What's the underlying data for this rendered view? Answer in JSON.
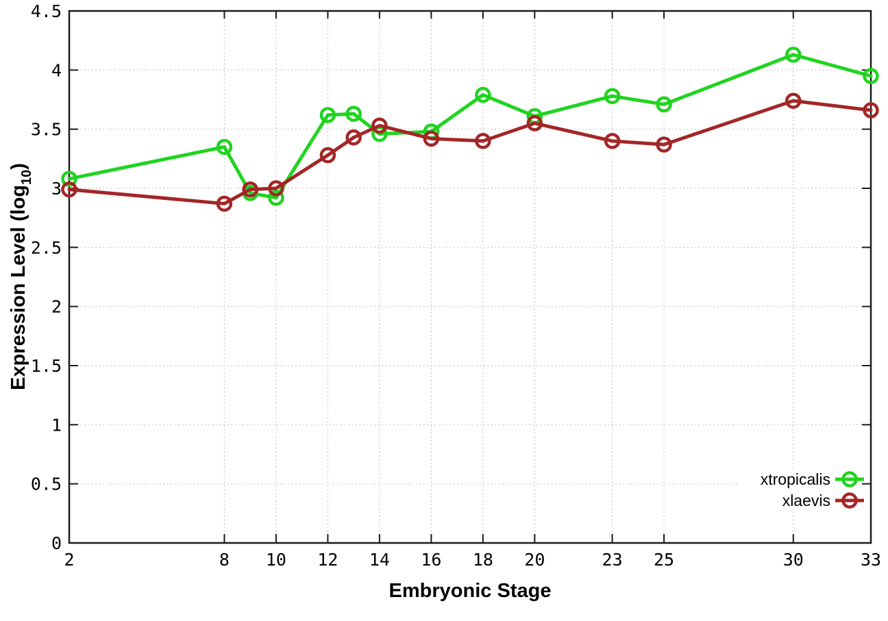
{
  "chart_data": {
    "type": "line",
    "title": "",
    "xlabel": "Embryonic Stage",
    "ylabel": {
      "prefix": "Expression Level (log",
      "sub": "10",
      "suffix": ")"
    },
    "xlim": [
      2,
      33
    ],
    "ylim": [
      0,
      4.5
    ],
    "xticks": [
      2,
      8,
      10,
      12,
      14,
      16,
      18,
      20,
      23,
      25,
      30,
      33
    ],
    "yticks": [
      0,
      0.5,
      1,
      1.5,
      2,
      2.5,
      3,
      3.5,
      4,
      4.5
    ],
    "grid": "dotted",
    "legend_position": "inside-bottom-right",
    "x": [
      2,
      8,
      9,
      10,
      12,
      13,
      14,
      16,
      18,
      20,
      23,
      25,
      30,
      33
    ],
    "series": [
      {
        "name": "xtropicalis",
        "marker": "open-circle",
        "color": "#1fd41f",
        "values": [
          3.08,
          3.35,
          2.96,
          2.92,
          3.62,
          3.63,
          3.46,
          3.48,
          3.79,
          3.61,
          3.78,
          3.71,
          4.13,
          3.95
        ]
      },
      {
        "name": "xlaevis",
        "marker": "open-circle",
        "color": "#a32626",
        "values": [
          2.99,
          2.87,
          2.99,
          3.0,
          3.28,
          3.43,
          3.53,
          3.42,
          3.4,
          3.55,
          3.4,
          3.37,
          3.74,
          3.66
        ]
      }
    ],
    "colors": {
      "grid": "#b9b9b9",
      "axis": "#1a1a1a",
      "text": "#000000",
      "background": "#ffffff"
    }
  }
}
